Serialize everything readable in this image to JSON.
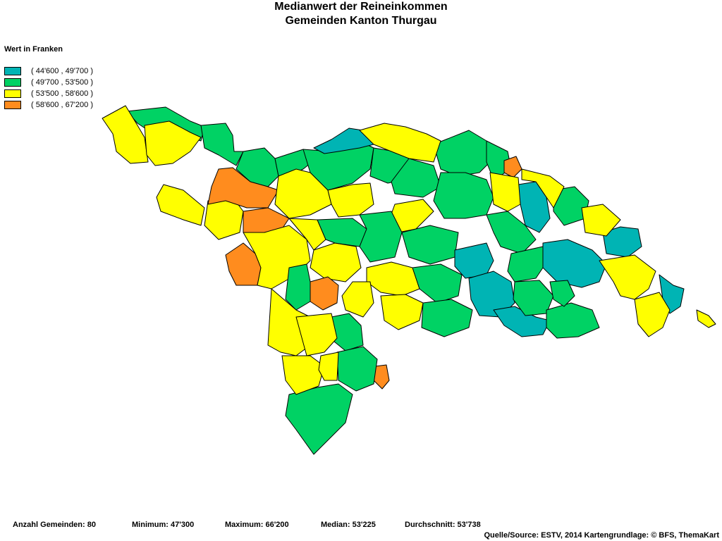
{
  "title": {
    "line1": "Medianwert der Reineinkommen",
    "line2": "Gemeinden Kanton Thurgau"
  },
  "legend": {
    "title": "Wert in Franken",
    "items": [
      {
        "label": "( 44'600 , 49'700 )",
        "color": "#00b4b4"
      },
      {
        "label": "( 49'700 , 53'500 )",
        "color": "#00d264"
      },
      {
        "label": "( 53'500 , 58'600 )",
        "color": "#ffff00"
      },
      {
        "label": "( 58'600 , 67'200 )",
        "color": "#ff8c1e"
      }
    ]
  },
  "stats": {
    "count": "Anzahl Gemeinden: 80",
    "minimum": "Minimum: 47'300",
    "maximum": "Maximum: 66'200",
    "median": "Median: 53'225",
    "mean": "Durchschnitt: 53'738"
  },
  "source": "Quelle/Source: ESTV, 2014 Kartengrundlage: © BFS, ThemaKart"
}
